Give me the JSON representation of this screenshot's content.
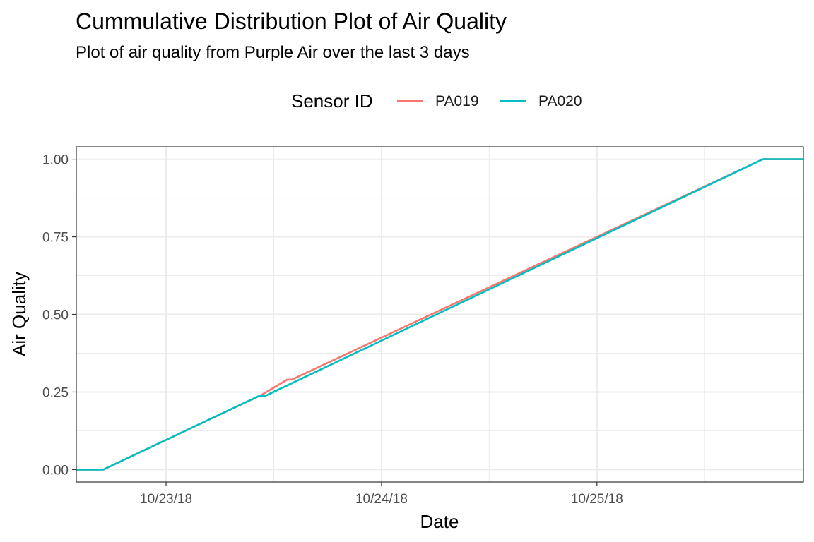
{
  "chart_data": {
    "type": "line",
    "title": "Cummulative Distribution Plot of Air Quality",
    "subtitle": "Plot of air quality from Purple Air over the last 3 days",
    "xlabel": "Date",
    "ylabel": "Air Quality",
    "legend_title": "Sensor ID",
    "legend_placement": "top",
    "grid": true,
    "xlim": [
      "2018-10-22T14:00",
      "2018-10-25T23:00"
    ],
    "ylim": [
      -0.04,
      1.04
    ],
    "x_ticks": [
      {
        "value": "2018-10-23T00:00",
        "label": "10/23/18"
      },
      {
        "value": "2018-10-24T00:00",
        "label": "10/24/18"
      },
      {
        "value": "2018-10-25T00:00",
        "label": "10/25/18"
      }
    ],
    "y_ticks": [
      {
        "value": 0.0,
        "label": "0.00"
      },
      {
        "value": 0.25,
        "label": "0.25"
      },
      {
        "value": 0.5,
        "label": "0.50"
      },
      {
        "value": 0.75,
        "label": "0.75"
      },
      {
        "value": 1.0,
        "label": "1.00"
      }
    ],
    "series": [
      {
        "name": "PA019",
        "color": "#F8766D",
        "points": [
          {
            "x": "2018-10-22T14:00",
            "y": 0.0
          },
          {
            "x": "2018-10-22T17:00",
            "y": 0.0
          },
          {
            "x": "2018-10-23T10:35",
            "y": 0.24
          },
          {
            "x": "2018-10-23T13:30",
            "y": 0.29
          },
          {
            "x": "2018-10-23T14:00",
            "y": 0.29
          },
          {
            "x": "2018-10-25T18:30",
            "y": 1.0
          },
          {
            "x": "2018-10-25T23:00",
            "y": 1.0
          }
        ]
      },
      {
        "name": "PA020",
        "color": "#00BFC4",
        "points": [
          {
            "x": "2018-10-22T14:00",
            "y": 0.0
          },
          {
            "x": "2018-10-22T17:00",
            "y": 0.0
          },
          {
            "x": "2018-10-23T10:20",
            "y": 0.237
          },
          {
            "x": "2018-10-23T11:00",
            "y": 0.237
          },
          {
            "x": "2018-10-25T18:30",
            "y": 1.0
          },
          {
            "x": "2018-10-25T23:00",
            "y": 1.0
          }
        ]
      }
    ]
  }
}
